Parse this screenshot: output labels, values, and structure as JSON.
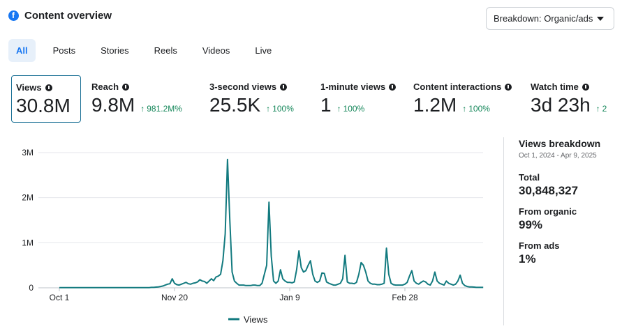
{
  "header": {
    "title": "Content overview",
    "icon": "facebook-logo-icon"
  },
  "breakdown": {
    "label": "Breakdown: Organic/ads"
  },
  "tabs": [
    {
      "label": "All",
      "active": true
    },
    {
      "label": "Posts"
    },
    {
      "label": "Stories"
    },
    {
      "label": "Reels"
    },
    {
      "label": "Videos"
    },
    {
      "label": "Live"
    }
  ],
  "metrics": [
    {
      "label": "Views",
      "value": "30.8M",
      "change": "",
      "selected": true
    },
    {
      "label": "Reach",
      "value": "9.8M",
      "change": "981.2M%"
    },
    {
      "label": "3-second views",
      "value": "25.5K",
      "change": "100%"
    },
    {
      "label": "1-minute views",
      "value": "1",
      "change": "100%"
    },
    {
      "label": "Content interactions",
      "value": "1.2M",
      "change": "100%"
    },
    {
      "label": "Watch time",
      "value": "3d 23h",
      "change": "2"
    }
  ],
  "colors": {
    "accent": "#1877f2",
    "series": "#127a7f",
    "positive": "#15875a"
  },
  "side": {
    "title": "Views breakdown",
    "range": "Oct 1, 2024 - Apr 9, 2025",
    "total_label": "Total",
    "total_value": "30,848,327",
    "organic_label": "From organic",
    "organic_value": "99%",
    "ads_label": "From ads",
    "ads_value": "1%"
  },
  "chart_data": {
    "type": "line",
    "x_tick_labels": [
      "Oct 1",
      "Nov 20",
      "Jan 9",
      "Feb 28"
    ],
    "y_tick_labels": [
      "0",
      "1M",
      "2M",
      "3M"
    ],
    "ylim": [
      0,
      3000000
    ],
    "grid": true,
    "legend": "bottom",
    "series": [
      {
        "name": "Views",
        "x_start": "2024-10-01",
        "values": [
          5000,
          5000,
          5000,
          5000,
          5000,
          5000,
          5000,
          5000,
          5000,
          5000,
          5000,
          5000,
          5000,
          5000,
          5000,
          5000,
          5000,
          5000,
          5000,
          5000,
          5000,
          5000,
          5000,
          5000,
          5000,
          5000,
          5000,
          5000,
          5000,
          5000,
          5000,
          5000,
          5000,
          5000,
          5000,
          5000,
          5000,
          5000,
          5000,
          5000,
          10000,
          10000,
          15000,
          20000,
          30000,
          40000,
          60000,
          80000,
          90000,
          200000,
          100000,
          70000,
          60000,
          80000,
          100000,
          120000,
          90000,
          80000,
          100000,
          110000,
          130000,
          180000,
          150000,
          140000,
          100000,
          150000,
          200000,
          160000,
          240000,
          260000,
          300000,
          600000,
          1200000,
          2850000,
          1500000,
          350000,
          150000,
          100000,
          60000,
          60000,
          60000,
          50000,
          50000,
          50000,
          60000,
          60000,
          50000,
          50000,
          100000,
          300000,
          500000,
          1900000,
          700000,
          150000,
          100000,
          150000,
          400000,
          200000,
          150000,
          120000,
          120000,
          110000,
          130000,
          400000,
          820000,
          450000,
          350000,
          380000,
          500000,
          600000,
          300000,
          150000,
          120000,
          150000,
          330000,
          320000,
          130000,
          100000,
          80000,
          60000,
          60000,
          80000,
          100000,
          200000,
          720000,
          130000,
          100000,
          100000,
          90000,
          120000,
          300000,
          560000,
          500000,
          350000,
          150000,
          100000,
          80000,
          80000,
          70000,
          70000,
          80000,
          100000,
          880000,
          300000,
          100000,
          70000,
          60000,
          60000,
          60000,
          60000,
          80000,
          120000,
          260000,
          380000,
          150000,
          100000,
          80000,
          120000,
          150000,
          130000,
          80000,
          60000,
          150000,
          350000,
          150000,
          100000,
          80000,
          60000,
          150000,
          100000,
          80000,
          60000,
          80000,
          150000,
          280000,
          100000,
          50000,
          30000,
          20000,
          20000,
          15000,
          10000,
          10000,
          10000,
          10000
        ]
      }
    ]
  }
}
